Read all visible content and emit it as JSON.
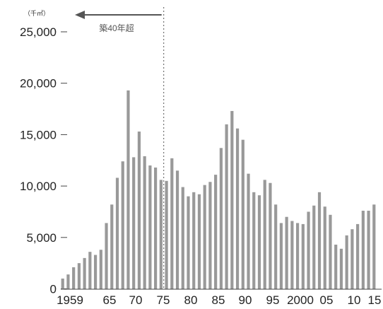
{
  "chart_data": {
    "type": "bar",
    "unit_label": "（千㎡）",
    "x": [
      1959,
      1960,
      1961,
      1962,
      1963,
      1964,
      1965,
      1966,
      1967,
      1968,
      1969,
      1970,
      1971,
      1972,
      1973,
      1974,
      1975,
      1976,
      1977,
      1978,
      1979,
      1980,
      1981,
      1982,
      1983,
      1984,
      1985,
      1986,
      1987,
      1988,
      1989,
      1990,
      1991,
      1992,
      1993,
      1994,
      1995,
      1996,
      1997,
      1998,
      1999,
      2000,
      2001,
      2002,
      2003,
      2004,
      2005,
      2006,
      2007,
      2008,
      2009,
      2010,
      2011,
      2012,
      2013,
      2014,
      2015,
      2016
    ],
    "values": [
      1000,
      1400,
      2100,
      2500,
      3000,
      3600,
      3300,
      3800,
      6400,
      8200,
      10800,
      12400,
      19300,
      12800,
      15300,
      12900,
      12000,
      11800,
      10600,
      10500,
      12700,
      11500,
      9900,
      9000,
      9400,
      9200,
      10100,
      10400,
      11100,
      13700,
      16000,
      17300,
      15600,
      14500,
      11200,
      9400,
      9100,
      10600,
      10300,
      8200,
      6400,
      7000,
      6600,
      6400,
      6300,
      7500,
      8100,
      9400,
      8000,
      7200,
      4300,
      3900,
      5200,
      5800,
      6300,
      7600,
      7600,
      8200
    ],
    "x_tick_labels": [
      "1959",
      "65",
      "70",
      "75",
      "80",
      "85",
      "90",
      "95",
      "2000",
      "05",
      "10",
      "15"
    ],
    "y_ticks": [
      {
        "value": 0,
        "label": "0"
      },
      {
        "value": 5000,
        "label": "5,000"
      },
      {
        "value": 10000,
        "label": "10,000"
      },
      {
        "value": 15000,
        "label": "15,000"
      },
      {
        "value": 20000,
        "label": "20,000"
      },
      {
        "value": 25000,
        "label": "25,000"
      }
    ],
    "ylim": [
      0,
      27000
    ],
    "bar_color": "#999999",
    "annotation": {
      "text": "築40年超",
      "divider_between": [
        1977,
        1978
      ],
      "arrow_direction": "left"
    },
    "grid": false
  }
}
